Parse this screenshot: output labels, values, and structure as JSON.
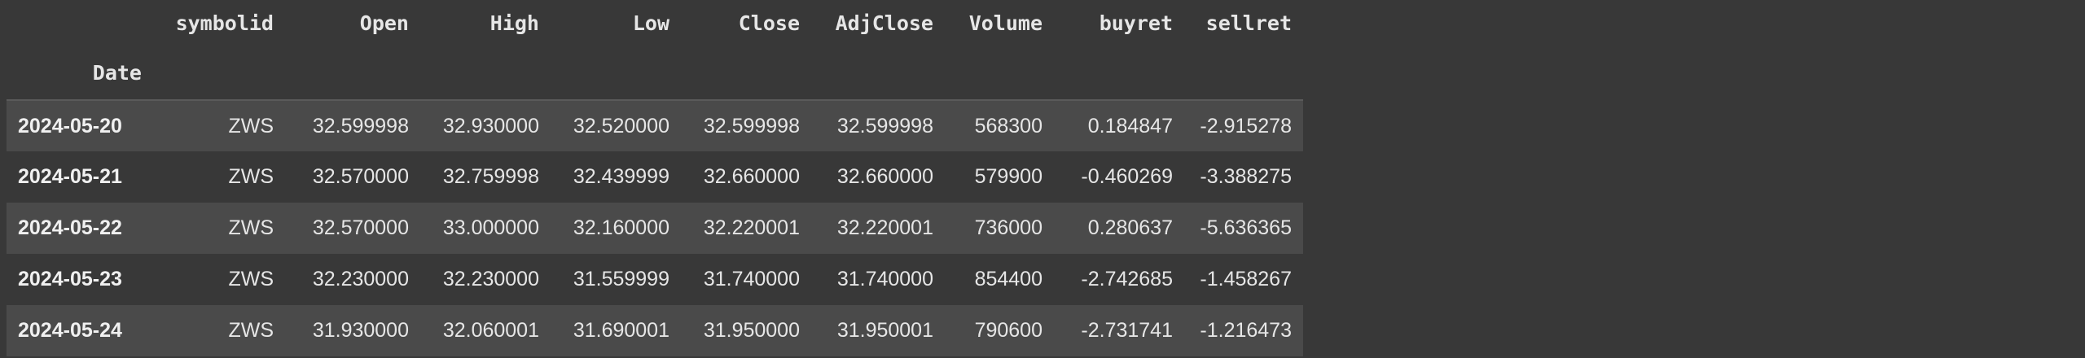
{
  "table": {
    "columns": [
      "symbolid",
      "Open",
      "High",
      "Low",
      "Close",
      "AdjClose",
      "Volume",
      "buyret",
      "sellret"
    ],
    "index_name": "Date",
    "rows": [
      {
        "date": "2024-05-20",
        "cells": [
          "ZWS",
          "32.599998",
          "32.930000",
          "32.520000",
          "32.599998",
          "32.599998",
          "568300",
          "0.184847",
          "-2.915278"
        ]
      },
      {
        "date": "2024-05-21",
        "cells": [
          "ZWS",
          "32.570000",
          "32.759998",
          "32.439999",
          "32.660000",
          "32.660000",
          "579900",
          "-0.460269",
          "-3.388275"
        ]
      },
      {
        "date": "2024-05-22",
        "cells": [
          "ZWS",
          "32.570000",
          "33.000000",
          "32.160000",
          "32.220001",
          "32.220001",
          "736000",
          "0.280637",
          "-5.636365"
        ]
      },
      {
        "date": "2024-05-23",
        "cells": [
          "ZWS",
          "32.230000",
          "32.230000",
          "31.559999",
          "31.740000",
          "31.740000",
          "854400",
          "-2.742685",
          "-1.458267"
        ]
      },
      {
        "date": "2024-05-24",
        "cells": [
          "ZWS",
          "31.930000",
          "32.060001",
          "31.690001",
          "31.950000",
          "31.950001",
          "790600",
          "-2.731741",
          "-1.216473"
        ]
      }
    ]
  },
  "colors": {
    "background": "#383838",
    "row_stripe": "#4a4a4a",
    "text": "#e6e6e6",
    "header_rule": "#5a5a5a"
  }
}
